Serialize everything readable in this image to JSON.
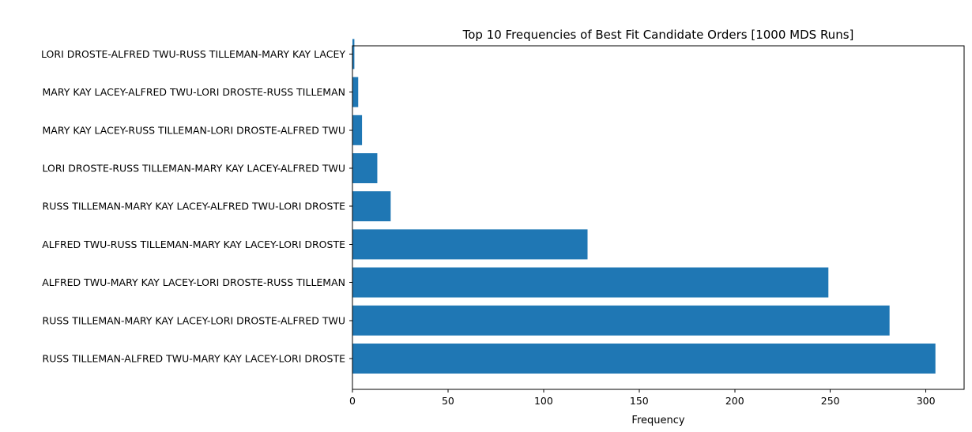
{
  "chart_data": {
    "type": "bar",
    "orientation": "horizontal",
    "title": "Top 10 Frequencies of Best Fit Candidate Orders [1000 MDS Runs]",
    "xlabel": "Frequency",
    "ylabel": "",
    "xlim": [
      0,
      320
    ],
    "x_ticks": [
      0,
      50,
      100,
      150,
      200,
      250,
      300
    ],
    "bar_color": "#1f77b4",
    "grid": false,
    "legend": "none",
    "categories": [
      "RUSS TILLEMAN-ALFRED TWU-MARY KAY LACEY-LORI DROSTE",
      "RUSS TILLEMAN-MARY KAY LACEY-LORI DROSTE-ALFRED TWU",
      "ALFRED TWU-MARY KAY LACEY-LORI DROSTE-RUSS TILLEMAN",
      "ALFRED TWU-RUSS TILLEMAN-MARY KAY LACEY-LORI DROSTE",
      "RUSS TILLEMAN-MARY KAY LACEY-ALFRED TWU-LORI DROSTE",
      "LORI DROSTE-RUSS TILLEMAN-MARY KAY LACEY-ALFRED TWU",
      "MARY KAY LACEY-RUSS TILLEMAN-LORI DROSTE-ALFRED TWU",
      "MARY KAY LACEY-ALFRED TWU-LORI DROSTE-RUSS TILLEMAN",
      "LORI DROSTE-ALFRED TWU-RUSS TILLEMAN-MARY KAY LACEY"
    ],
    "values": [
      305,
      281,
      249,
      123,
      20,
      13,
      5,
      3,
      1
    ]
  }
}
